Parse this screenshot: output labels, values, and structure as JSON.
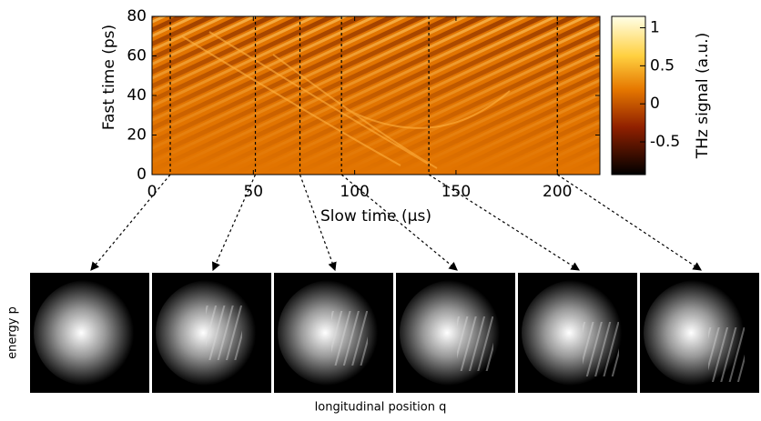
{
  "chart_data": {
    "type": "heatmap",
    "xlabel": "Slow time (µs)",
    "ylabel": "Fast time (ps)",
    "xlim": [
      0,
      221
    ],
    "xticks": [
      0,
      50,
      100,
      150,
      200
    ],
    "ylim": [
      0,
      80
    ],
    "yticks": [
      0,
      20,
      40,
      60,
      80
    ],
    "colorbar": {
      "label": "THz signal (a.u.)",
      "lim": [
        -0.93,
        1.15
      ],
      "ticks": [
        -0.5,
        0,
        0.5,
        1
      ]
    },
    "markers": [
      9,
      51,
      73,
      93.5,
      136.6,
      200
    ],
    "snapshots": {
      "xlabel": "longitudinal position q",
      "ylabel": "energy p"
    }
  }
}
